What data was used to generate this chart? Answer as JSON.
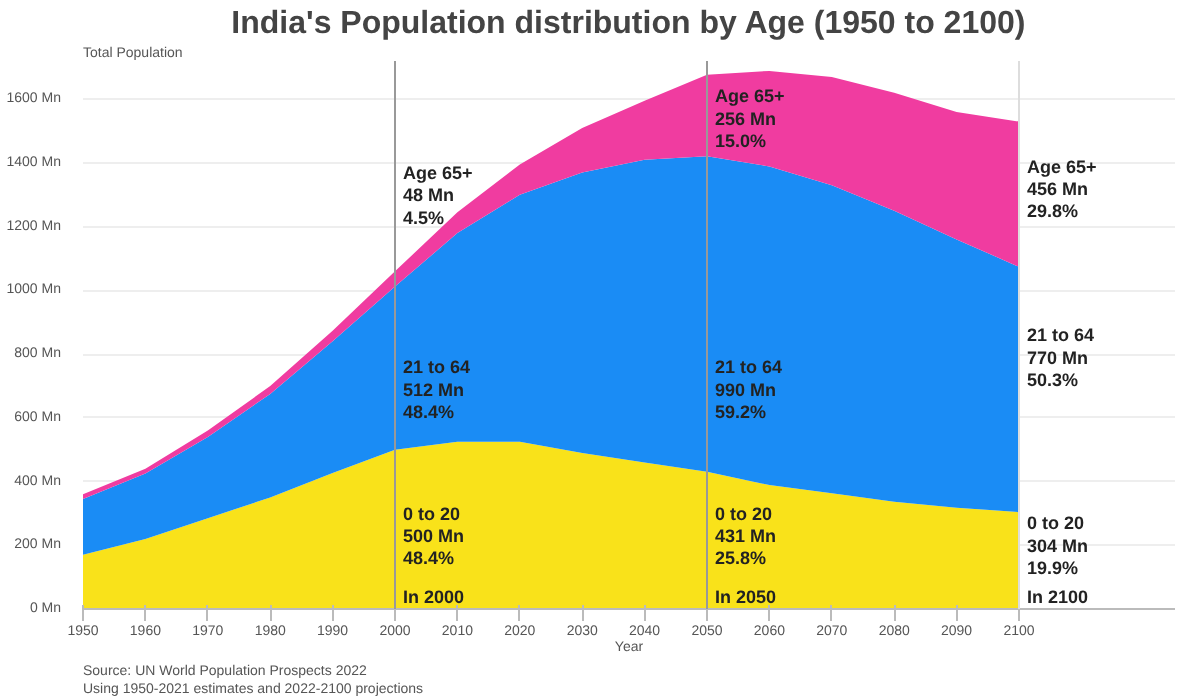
{
  "chart_data": {
    "type": "area",
    "stacked": true,
    "title": "India's Population distribution by Age (1950 to 2100)",
    "xlabel": "Year",
    "ylabel": "Total Population",
    "x": [
      1950,
      1960,
      1970,
      1980,
      1990,
      2000,
      2010,
      2020,
      2030,
      2040,
      2050,
      2060,
      2070,
      2080,
      2090,
      2100
    ],
    "series": [
      {
        "color": "#f9e21a",
        "values": [
          170,
          220,
          285,
          350,
          427,
          500,
          525,
          525,
          490,
          460,
          431,
          389,
          363,
          337,
          318,
          304
        ]
      },
      {
        "color": "#1a8cf5",
        "values": [
          175,
          205,
          255,
          325,
          413,
          512,
          655,
          775,
          880,
          950,
          990,
          1000,
          967,
          913,
          842,
          770
        ]
      },
      {
        "color": "#f03ca0",
        "values": [
          15,
          15,
          20,
          25,
          33,
          48,
          65,
          95,
          140,
          185,
          256,
          300,
          340,
          370,
          400,
          456
        ]
      }
    ],
    "xlim": [
      1950,
      2125
    ],
    "ylim": [
      0,
      1720
    ],
    "xticks": [
      1950,
      1960,
      1970,
      1980,
      1990,
      2000,
      2010,
      2020,
      2030,
      2040,
      2050,
      2060,
      2070,
      2080,
      2090,
      2100
    ],
    "yticks": [
      {
        "value": 0,
        "label": "0 Mn"
      },
      {
        "value": 200,
        "label": "200 Mn"
      },
      {
        "value": 400,
        "label": "400 Mn"
      },
      {
        "value": 600,
        "label": "600 Mn"
      },
      {
        "value": 800,
        "label": "800 Mn"
      },
      {
        "value": 1000,
        "label": "1000 Mn"
      },
      {
        "value": 1200,
        "label": "1200 Mn"
      },
      {
        "value": 1400,
        "label": "1400 Mn"
      },
      {
        "value": 1600,
        "label": "1600 Mn"
      }
    ],
    "grid": "y",
    "ref_lines": [
      {
        "axis": "x",
        "value": 2000,
        "color": "#999999"
      },
      {
        "axis": "x",
        "value": 2050,
        "color": "#999999"
      },
      {
        "axis": "x",
        "value": 2100,
        "color": "#dddddd"
      }
    ],
    "annotations": [
      {
        "text": "Age 65+",
        "x": 2000,
        "y": 1400
      },
      {
        "text": "48 Mn",
        "x": 2000,
        "y": 1330
      },
      {
        "text": "4.5%",
        "x": 2000,
        "y": 1260
      },
      {
        "text": "21 to 64",
        "x": 2000,
        "y": 790
      },
      {
        "text": "512 Mn",
        "x": 2000,
        "y": 720
      },
      {
        "text": "48.4%",
        "x": 2000,
        "y": 650
      },
      {
        "text": "0 to 20",
        "x": 2000,
        "y": 330
      },
      {
        "text": "500 Mn",
        "x": 2000,
        "y": 260
      },
      {
        "text": "48.4%",
        "x": 2000,
        "y": 190
      },
      {
        "text": "In 2000",
        "x": 2000,
        "y": 70
      },
      {
        "text": "Age 65+",
        "x": 2050,
        "y": 1640
      },
      {
        "text": "256 Mn",
        "x": 2050,
        "y": 1570
      },
      {
        "text": "15.0%",
        "x": 2050,
        "y": 1500
      },
      {
        "text": "21 to 64",
        "x": 2050,
        "y": 790
      },
      {
        "text": "990 Mn",
        "x": 2050,
        "y": 720
      },
      {
        "text": "59.2%",
        "x": 2050,
        "y": 650
      },
      {
        "text": "0 to 20",
        "x": 2050,
        "y": 330
      },
      {
        "text": "431 Mn",
        "x": 2050,
        "y": 260
      },
      {
        "text": "25.8%",
        "x": 2050,
        "y": 190
      },
      {
        "text": "In 2050",
        "x": 2050,
        "y": 70
      },
      {
        "text": "Age 65+",
        "x": 2100,
        "y": 1420
      },
      {
        "text": "456 Mn",
        "x": 2100,
        "y": 1350
      },
      {
        "text": "29.8%",
        "x": 2100,
        "y": 1280
      },
      {
        "text": "21 to 64",
        "x": 2100,
        "y": 890
      },
      {
        "text": "770 Mn",
        "x": 2100,
        "y": 820
      },
      {
        "text": "50.3%",
        "x": 2100,
        "y": 750
      },
      {
        "text": "0 to 20",
        "x": 2100,
        "y": 300
      },
      {
        "text": "304 Mn",
        "x": 2100,
        "y": 230
      },
      {
        "text": "19.9%",
        "x": 2100,
        "y": 160
      },
      {
        "text": "In 2100",
        "x": 2100,
        "y": 70
      },
      "Source: UN World Population Prospects 2022",
      "Using 1950-2021 estimates and 2022-2100 projections"
    ]
  }
}
